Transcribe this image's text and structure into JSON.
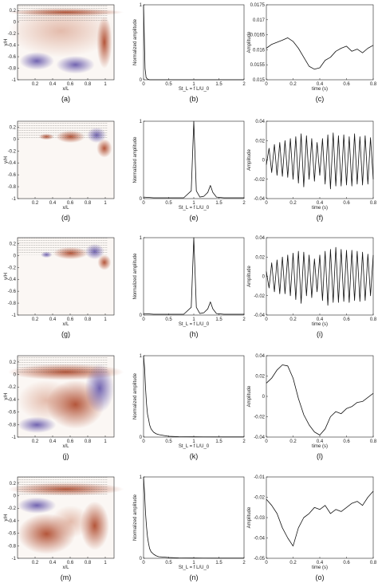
{
  "chart_data": [
    {
      "id": "a",
      "type": "heatmap",
      "caption": "(a)",
      "xlabel": "x/L",
      "ylabel": "y/H",
      "xticks": [
        "0.2",
        "0.4",
        "0.6",
        "0.8",
        "1"
      ],
      "yticks": [
        "0.2",
        "0",
        "-0.2",
        "-0.4",
        "-0.6",
        "-0.8",
        "-1"
      ],
      "xlim": [
        0,
        1.1
      ],
      "ylim": [
        -1,
        0.3
      ]
    },
    {
      "id": "b",
      "type": "line",
      "caption": "(b)",
      "xlabel": "St_L = f L/U_0",
      "ylabel": "Normalized amplitude",
      "xticks": [
        "0",
        "0.5",
        "1",
        "1.5",
        "2"
      ],
      "yticks": [
        "0",
        "1"
      ],
      "xlim": [
        0,
        2
      ],
      "ylim": [
        0,
        1
      ],
      "x": [
        0,
        0.01,
        0.02,
        0.03,
        0.05,
        0.08,
        0.12,
        0.2,
        0.5,
        1,
        1.5,
        2
      ],
      "y": [
        1,
        0.75,
        0.4,
        0.15,
        0.03,
        0.01,
        0.0,
        0.0,
        0.0,
        0.0,
        0.0,
        0.0
      ]
    },
    {
      "id": "c",
      "type": "line",
      "caption": "(c)",
      "xlabel": "time (s)",
      "ylabel": "Amplitude",
      "xticks": [
        "0",
        "0.2",
        "0.4",
        "0.6",
        "0.8"
      ],
      "yticks": [
        "0.0175",
        "0.017",
        "0.0165",
        "0.016",
        "0.0155",
        "0.015"
      ],
      "xlim": [
        0,
        0.8
      ],
      "ylim": [
        0.015,
        0.0175
      ],
      "x": [
        0,
        0.04,
        0.08,
        0.12,
        0.16,
        0.2,
        0.24,
        0.28,
        0.32,
        0.36,
        0.4,
        0.44,
        0.48,
        0.52,
        0.56,
        0.6,
        0.64,
        0.68,
        0.72,
        0.76,
        0.8
      ],
      "y": [
        0.01605,
        0.01618,
        0.01625,
        0.01632,
        0.0164,
        0.01628,
        0.01605,
        0.01575,
        0.01545,
        0.01535,
        0.0154,
        0.01565,
        0.01575,
        0.01595,
        0.01605,
        0.01612,
        0.01595,
        0.01602,
        0.0159,
        0.01605,
        0.01615
      ]
    },
    {
      "id": "d",
      "type": "heatmap",
      "caption": "(d)",
      "xlabel": "x/L",
      "ylabel": "y/H",
      "xticks": [
        "0.2",
        "0.4",
        "0.6",
        "0.8",
        "1"
      ],
      "yticks": [
        "0.2",
        "0",
        "-0.2",
        "-0.4",
        "-0.6",
        "-0.8",
        "-1"
      ],
      "xlim": [
        0,
        1.1
      ],
      "ylim": [
        -1,
        0.3
      ]
    },
    {
      "id": "e",
      "type": "line",
      "caption": "(e)",
      "xlabel": "St_L = f L/U_0",
      "ylabel": "Normalized amplitude",
      "xticks": [
        "0",
        "0.5",
        "1",
        "1.5",
        "2"
      ],
      "yticks": [
        "0",
        "1"
      ],
      "xlim": [
        0,
        2
      ],
      "ylim": [
        0,
        1
      ],
      "x": [
        0,
        0.2,
        0.5,
        0.8,
        0.95,
        1.0,
        1.05,
        1.12,
        1.2,
        1.28,
        1.33,
        1.38,
        1.45,
        1.6,
        2
      ],
      "y": [
        0.02,
        0.01,
        0.01,
        0.01,
        0.1,
        1.0,
        0.1,
        0.02,
        0.03,
        0.08,
        0.17,
        0.08,
        0.02,
        0.01,
        0.01
      ]
    },
    {
      "id": "f",
      "type": "line",
      "caption": "(f)",
      "xlabel": "time (s)",
      "ylabel": "Amplitude",
      "xticks": [
        "0",
        "0.2",
        "0.4",
        "0.6",
        "0.8"
      ],
      "yticks": [
        "0.04",
        "0.02",
        "0",
        "-0.02",
        "-0.04"
      ],
      "xlim": [
        0,
        0.8
      ],
      "ylim": [
        -0.04,
        0.04
      ],
      "x": [
        0,
        0.02,
        0.04,
        0.06,
        0.08,
        0.1,
        0.12,
        0.14,
        0.16,
        0.18,
        0.2,
        0.22,
        0.24,
        0.26,
        0.28,
        0.3,
        0.32,
        0.34,
        0.36,
        0.38,
        0.4,
        0.42,
        0.44,
        0.46,
        0.48,
        0.5,
        0.52,
        0.54,
        0.56,
        0.58,
        0.6,
        0.62,
        0.64,
        0.66,
        0.68,
        0.7,
        0.72,
        0.74,
        0.76,
        0.78,
        0.8
      ],
      "y": [
        -0.005,
        0.012,
        -0.013,
        0.016,
        -0.016,
        0.018,
        -0.017,
        0.02,
        -0.018,
        0.022,
        -0.02,
        0.024,
        -0.024,
        0.027,
        -0.028,
        0.025,
        -0.02,
        0.022,
        -0.022,
        0.018,
        -0.016,
        0.022,
        -0.025,
        0.026,
        -0.03,
        0.028,
        -0.027,
        0.025,
        -0.027,
        0.026,
        -0.026,
        0.024,
        -0.027,
        0.027,
        -0.025,
        0.024,
        -0.026,
        0.025,
        -0.025,
        0.023,
        -0.02
      ]
    },
    {
      "id": "g",
      "type": "heatmap",
      "caption": "(g)",
      "xlabel": "x/L",
      "ylabel": "y/H",
      "xticks": [
        "0.2",
        "0.4",
        "0.6",
        "0.8",
        "1"
      ],
      "yticks": [
        "0.2",
        "0",
        "-0.2",
        "-0.4",
        "-0.6",
        "-0.8",
        "-1"
      ],
      "xlim": [
        0,
        1.1
      ],
      "ylim": [
        -1,
        0.3
      ]
    },
    {
      "id": "h",
      "type": "line",
      "caption": "(h)",
      "xlabel": "St_L = f L/U_0",
      "ylabel": "Normalized amplitude",
      "xticks": [
        "0",
        "0.5",
        "1",
        "1.5",
        "2"
      ],
      "yticks": [
        "0",
        "1"
      ],
      "xlim": [
        0,
        2
      ],
      "ylim": [
        0,
        1
      ],
      "x": [
        0,
        0.2,
        0.5,
        0.8,
        0.95,
        1.0,
        1.05,
        1.12,
        1.2,
        1.28,
        1.33,
        1.38,
        1.45,
        1.6,
        2
      ],
      "y": [
        0.02,
        0.01,
        0.01,
        0.01,
        0.1,
        1.0,
        0.1,
        0.02,
        0.03,
        0.08,
        0.17,
        0.08,
        0.02,
        0.01,
        0.01
      ]
    },
    {
      "id": "i",
      "type": "line",
      "caption": "(i)",
      "xlabel": "time (s)",
      "ylabel": "Amplitude",
      "xticks": [
        "0",
        "0.2",
        "0.4",
        "0.6",
        "0.8"
      ],
      "yticks": [
        "0.04",
        "0.02",
        "0",
        "-0.02",
        "-0.04"
      ],
      "xlim": [
        0,
        0.8
      ],
      "ylim": [
        -0.04,
        0.04
      ],
      "x": [
        0,
        0.02,
        0.04,
        0.06,
        0.08,
        0.1,
        0.12,
        0.14,
        0.16,
        0.18,
        0.2,
        0.22,
        0.24,
        0.26,
        0.28,
        0.3,
        0.32,
        0.34,
        0.36,
        0.38,
        0.4,
        0.42,
        0.44,
        0.46,
        0.48,
        0.5,
        0.52,
        0.54,
        0.56,
        0.58,
        0.6,
        0.62,
        0.64,
        0.66,
        0.68,
        0.7,
        0.72,
        0.74,
        0.76,
        0.78,
        0.8
      ],
      "y": [
        0.005,
        -0.012,
        0.014,
        -0.016,
        0.017,
        -0.018,
        0.02,
        -0.018,
        0.022,
        -0.02,
        0.024,
        -0.024,
        0.026,
        -0.028,
        0.025,
        -0.02,
        0.022,
        -0.022,
        0.018,
        -0.016,
        0.022,
        -0.025,
        0.026,
        -0.03,
        0.028,
        -0.027,
        0.03,
        -0.027,
        0.028,
        -0.026,
        0.027,
        -0.027,
        0.027,
        -0.025,
        0.026,
        -0.026,
        0.025,
        -0.025,
        0.023,
        -0.02,
        0.022
      ]
    },
    {
      "id": "j",
      "type": "heatmap",
      "caption": "(j)",
      "xlabel": "x/L",
      "ylabel": "y/H",
      "xticks": [
        "0.2",
        "0.4",
        "0.6",
        "0.8",
        "1"
      ],
      "yticks": [
        "0.2",
        "0",
        "-0.2",
        "-0.4",
        "-0.6",
        "-0.8",
        "-1"
      ],
      "xlim": [
        0,
        1.1
      ],
      "ylim": [
        -1,
        0.3
      ]
    },
    {
      "id": "k",
      "type": "line",
      "caption": "(k)",
      "xlabel": "St_L = f L/U_0",
      "ylabel": "Normalized amplitude",
      "xticks": [
        "0",
        "0.5",
        "1",
        "1.5",
        "2"
      ],
      "yticks": [
        "0",
        "1"
      ],
      "xlim": [
        0,
        2
      ],
      "ylim": [
        0,
        1
      ],
      "x": [
        0,
        0.02,
        0.04,
        0.06,
        0.08,
        0.1,
        0.12,
        0.15,
        0.2,
        0.25,
        0.3,
        0.4,
        0.5,
        0.7,
        1,
        1.5,
        2
      ],
      "y": [
        1,
        0.85,
        0.6,
        0.4,
        0.28,
        0.22,
        0.15,
        0.1,
        0.06,
        0.04,
        0.03,
        0.02,
        0.01,
        0.005,
        0.003,
        0.002,
        0.002
      ]
    },
    {
      "id": "l",
      "type": "line",
      "caption": "(l)",
      "xlabel": "time (s)",
      "ylabel": "Amplitude",
      "xticks": [
        "0",
        "0.2",
        "0.4",
        "0.6",
        "0.8"
      ],
      "yticks": [
        "0.04",
        "0.02",
        "0",
        "-0.02",
        "-0.04"
      ],
      "xlim": [
        0,
        0.8
      ],
      "ylim": [
        -0.04,
        0.04
      ],
      "x": [
        0,
        0.04,
        0.08,
        0.12,
        0.16,
        0.2,
        0.24,
        0.28,
        0.32,
        0.36,
        0.4,
        0.44,
        0.48,
        0.52,
        0.56,
        0.6,
        0.64,
        0.68,
        0.72,
        0.76,
        0.8
      ],
      "y": [
        0.013,
        0.018,
        0.026,
        0.031,
        0.03,
        0.018,
        -0.002,
        -0.018,
        -0.028,
        -0.035,
        -0.038,
        -0.032,
        -0.02,
        -0.015,
        -0.017,
        -0.012,
        -0.01,
        -0.006,
        -0.005,
        -0.001,
        0.003
      ]
    },
    {
      "id": "m",
      "type": "heatmap",
      "caption": "(m)",
      "xlabel": "x/L",
      "ylabel": "y/H",
      "xticks": [
        "0.2",
        "0.4",
        "0.6",
        "0.8",
        "1"
      ],
      "yticks": [
        "0.2",
        "0",
        "-0.2",
        "-0.4",
        "-0.6",
        "-0.8",
        "-1"
      ],
      "xlim": [
        0,
        1.1
      ],
      "ylim": [
        -1,
        0.3
      ]
    },
    {
      "id": "n",
      "type": "line",
      "caption": "(n)",
      "xlabel": "St_L = f L/U_0",
      "ylabel": "Normalized amplitude",
      "xticks": [
        "0",
        "0.5",
        "1",
        "1.5",
        "2"
      ],
      "yticks": [
        "0",
        "1"
      ],
      "xlim": [
        0,
        2
      ],
      "ylim": [
        0,
        1
      ],
      "x": [
        0,
        0.02,
        0.04,
        0.06,
        0.08,
        0.1,
        0.12,
        0.15,
        0.2,
        0.25,
        0.3,
        0.4,
        0.5,
        0.7,
        1,
        1.5,
        2
      ],
      "y": [
        1,
        0.8,
        0.55,
        0.38,
        0.26,
        0.18,
        0.12,
        0.08,
        0.05,
        0.03,
        0.02,
        0.015,
        0.01,
        0.005,
        0.003,
        0.002,
        0.002
      ]
    },
    {
      "id": "o",
      "type": "line",
      "caption": "(o)",
      "xlabel": "time (s)",
      "ylabel": "Amplitude",
      "xticks": [
        "0",
        "0.2",
        "0.4",
        "0.6",
        "0.8"
      ],
      "yticks": [
        "-0.01",
        "-0.02",
        "-0.03",
        "-0.04",
        "-0.05"
      ],
      "xlim": [
        0,
        0.8
      ],
      "ylim": [
        -0.05,
        -0.01
      ],
      "x": [
        0,
        0.04,
        0.08,
        0.12,
        0.16,
        0.2,
        0.24,
        0.28,
        0.32,
        0.36,
        0.4,
        0.44,
        0.48,
        0.52,
        0.56,
        0.6,
        0.64,
        0.68,
        0.72,
        0.76,
        0.8
      ],
      "y": [
        -0.021,
        -0.024,
        -0.028,
        -0.035,
        -0.04,
        -0.044,
        -0.035,
        -0.03,
        -0.028,
        -0.025,
        -0.026,
        -0.024,
        -0.028,
        -0.026,
        -0.027,
        -0.025,
        -0.023,
        -0.022,
        -0.024,
        -0.02,
        -0.017
      ]
    }
  ],
  "colors": {
    "warm": "#a03a1c",
    "cool": "#5a4a9a",
    "line": "#111111",
    "axis": "#222222"
  }
}
